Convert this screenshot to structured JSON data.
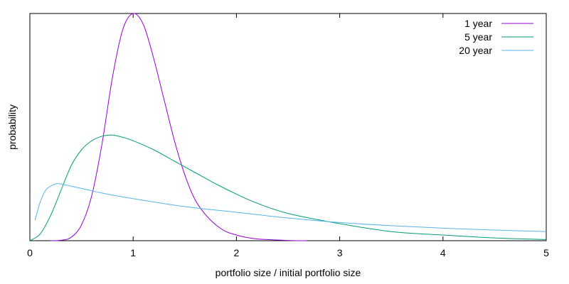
{
  "chart_data": {
    "type": "line",
    "title": "",
    "xlabel": "portfolio size / initial portfolio size",
    "ylabel": "probability",
    "xlim": [
      0,
      5
    ],
    "ylim": [
      0,
      1
    ],
    "x_ticks": [
      "0",
      "1",
      "2",
      "3",
      "4",
      "5"
    ],
    "y_ticks_labeled": false,
    "grid": false,
    "legend_position": "top-right",
    "series": [
      {
        "name": "1 year",
        "color": "#9400d3",
        "x": [
          0.2,
          0.3,
          0.4,
          0.5,
          0.6,
          0.7,
          0.8,
          0.9,
          1.0,
          1.1,
          1.2,
          1.3,
          1.4,
          1.5,
          1.6,
          1.7,
          1.8,
          1.9,
          2.0,
          2.1,
          2.2,
          2.3,
          2.4,
          2.5,
          2.6,
          2.68
        ],
        "y": [
          0.0,
          0.002,
          0.015,
          0.07,
          0.2,
          0.43,
          0.72,
          0.93,
          1.0,
          0.95,
          0.8,
          0.62,
          0.44,
          0.29,
          0.18,
          0.115,
          0.07,
          0.04,
          0.025,
          0.014,
          0.008,
          0.005,
          0.003,
          0.001,
          0.0,
          0.0
        ]
      },
      {
        "name": "5 year",
        "color": "#009e73",
        "x": [
          0.0,
          0.1,
          0.2,
          0.3,
          0.4,
          0.5,
          0.6,
          0.7,
          0.8,
          0.9,
          1.0,
          1.2,
          1.4,
          1.6,
          1.8,
          2.0,
          2.2,
          2.5,
          3.0,
          3.5,
          4.0,
          4.5,
          5.0
        ],
        "y": [
          0.0,
          0.03,
          0.11,
          0.22,
          0.33,
          0.4,
          0.44,
          0.46,
          0.465,
          0.455,
          0.44,
          0.4,
          0.35,
          0.3,
          0.25,
          0.205,
          0.165,
          0.12,
          0.075,
          0.04,
          0.025,
          0.012,
          0.005
        ]
      },
      {
        "name": "20 year",
        "color": "#56b4e9",
        "x": [
          0.05,
          0.1,
          0.15,
          0.2,
          0.25,
          0.3,
          0.4,
          0.5,
          0.75,
          1.0,
          1.5,
          2.0,
          2.5,
          3.0,
          3.5,
          4.0,
          4.5,
          5.0
        ],
        "y": [
          0.09,
          0.17,
          0.22,
          0.24,
          0.25,
          0.25,
          0.24,
          0.23,
          0.205,
          0.185,
          0.15,
          0.125,
          0.1,
          0.08,
          0.066,
          0.055,
          0.047,
          0.04
        ]
      }
    ]
  }
}
